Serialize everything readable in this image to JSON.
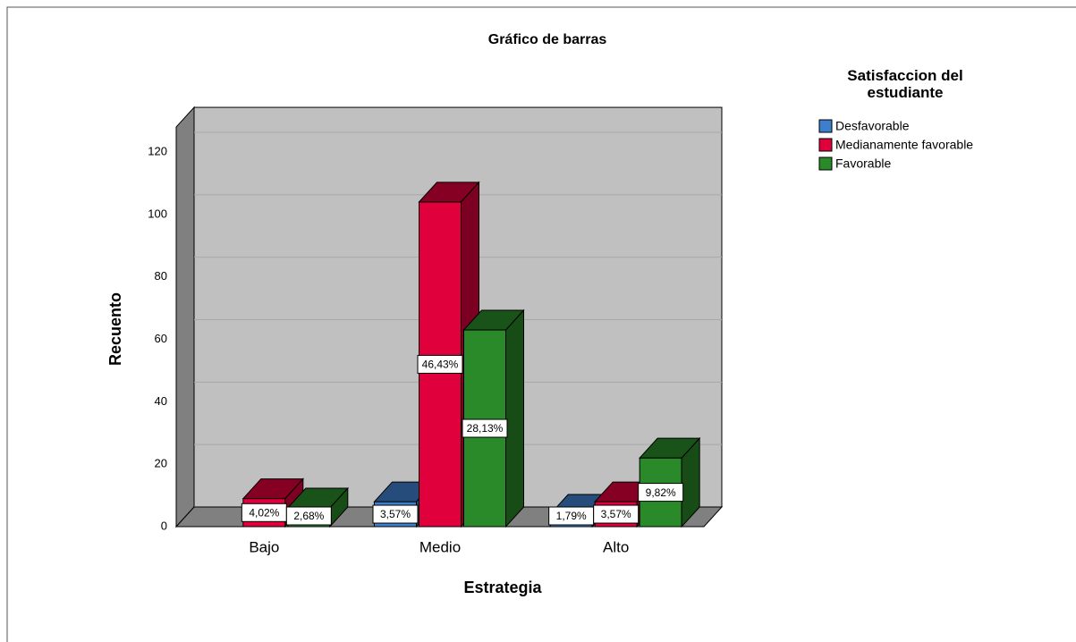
{
  "chart_data": {
    "type": "bar3d",
    "title": "Gráfico de barras",
    "x_label": "Estrategia",
    "y_label": "Recuento",
    "legend_title": "Satisfaccion del estudiante",
    "categories": [
      "Bajo",
      "Medio",
      "Alto"
    ],
    "series": [
      {
        "name": "Desfavorable",
        "color": "#3d7fcc",
        "values": [
          null,
          8,
          4
        ],
        "percent": [
          null,
          3.57,
          1.79
        ],
        "percent_labels": [
          null,
          "3,57%",
          "1,79%"
        ]
      },
      {
        "name": "Medianamente favorable",
        "color": "#e0003c",
        "values": [
          9,
          104,
          8
        ],
        "percent": [
          4.02,
          46.43,
          3.57
        ],
        "percent_labels": [
          "4,02%",
          "46,43%",
          "3,57%"
        ]
      },
      {
        "name": "Favorable",
        "color": "#2a8a2a",
        "values": [
          6,
          63,
          22
        ],
        "percent": [
          2.68,
          28.13,
          9.82
        ],
        "percent_labels": [
          "2,68%",
          "28,13%",
          "9,82%"
        ]
      }
    ],
    "ylim": [
      0,
      128
    ],
    "yticks": [
      0,
      20,
      40,
      60,
      80,
      100,
      120
    ],
    "grid": true
  }
}
